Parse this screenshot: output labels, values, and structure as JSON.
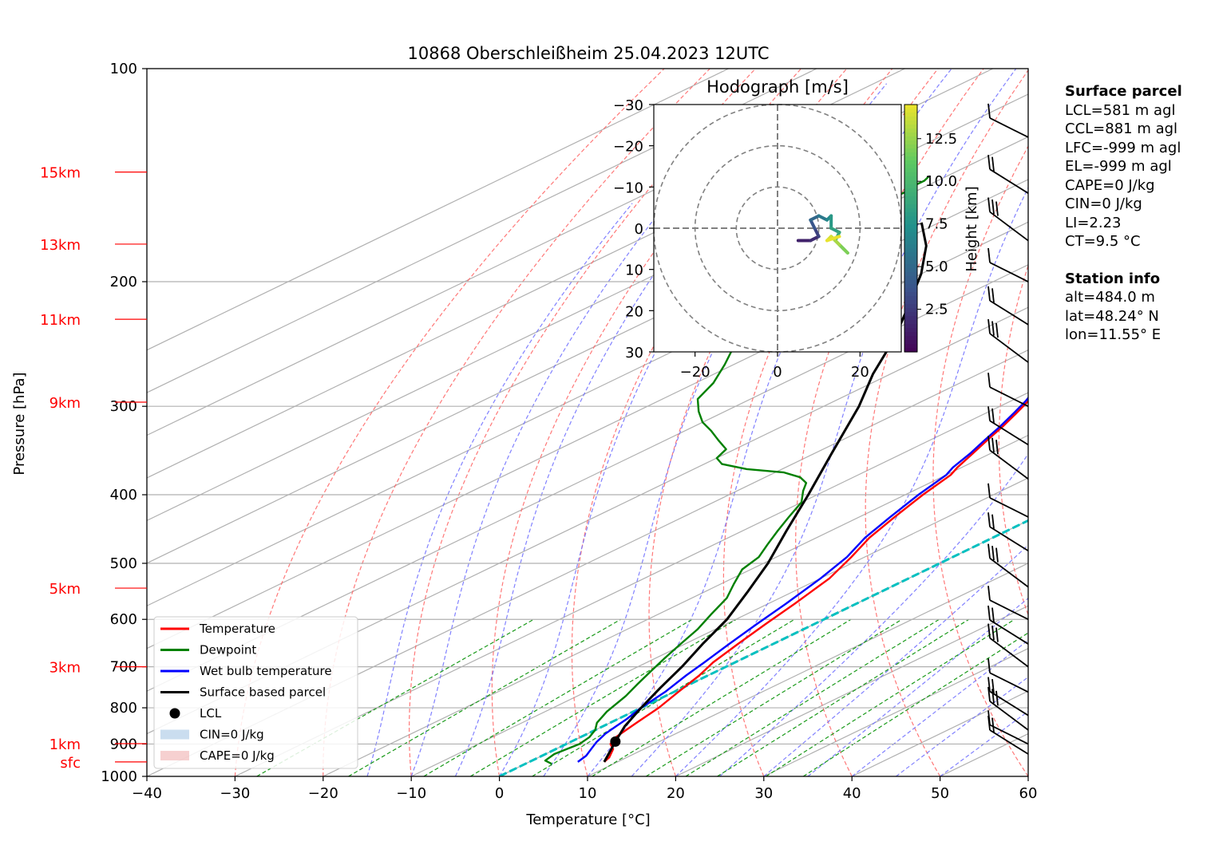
{
  "title": "10868 Oberschleißheim 25.04.2023 12UTC",
  "xlabel": "Temperature [°C]",
  "ylabel": "Pressure [hPa]",
  "hodograph": {
    "title": "Hodograph [m/s]",
    "colorbar_label": "Height [km]",
    "colorbar_ticks": [
      "2.5",
      "5.0",
      "7.5",
      "10.0",
      "12.5"
    ],
    "axis_ticks": [
      "−30",
      "−20",
      "−10",
      "0",
      "10",
      "20",
      "30"
    ],
    "x_ticks": [
      "−20",
      "0",
      "20"
    ]
  },
  "height_labels": [
    {
      "label": "15km",
      "p": 140
    },
    {
      "label": "13km",
      "p": 177
    },
    {
      "label": "11km",
      "p": 226
    },
    {
      "label": "9km",
      "p": 296
    },
    {
      "label": "5km",
      "p": 542
    },
    {
      "label": "3km",
      "p": 700
    },
    {
      "label": "1km",
      "p": 899
    },
    {
      "label": "sfc",
      "p": 954
    }
  ],
  "legend": [
    {
      "label": "Temperature",
      "color": "#ff0000",
      "kind": "line"
    },
    {
      "label": "Dewpoint",
      "color": "#008000",
      "kind": "line"
    },
    {
      "label": "Wet bulb temperature",
      "color": "#0000ff",
      "kind": "line"
    },
    {
      "label": "Surface based parcel",
      "color": "#000000",
      "kind": "line"
    },
    {
      "label": "LCL",
      "color": "#000000",
      "kind": "dot"
    },
    {
      "label": "CIN=0 J/kg",
      "color": "#a6c6e4",
      "kind": "patch"
    },
    {
      "label": "CAPE=0 J/kg",
      "color": "#f0b0b0",
      "kind": "patch"
    }
  ],
  "surface_parcel": {
    "header": "Surface parcel",
    "lines": [
      "LCL=581 m agl",
      "CCL=881 m agl",
      "LFC=-999 m agl",
      "EL=-999 m agl",
      "CAPE=0 J/kg",
      "CIN=0 J/kg",
      "LI=2.23",
      "CT=9.5 °C"
    ]
  },
  "station_info": {
    "header": "Station info",
    "lines": [
      "alt=484.0 m",
      "lat=48.24° N",
      "lon=11.55° E"
    ]
  },
  "chart_data": {
    "type": "line",
    "x_ticks": [
      "−40",
      "−30",
      "−20",
      "−10",
      "0",
      "10",
      "20",
      "30",
      "40",
      "50",
      "60"
    ],
    "y_ticks": [
      "100",
      "200",
      "300",
      "400",
      "500",
      "600",
      "700",
      "800",
      "900",
      "1000"
    ],
    "xlim": [
      -40,
      60
    ],
    "ylim": [
      1000,
      100
    ],
    "yscale": "log",
    "skew_deg_per_log10": 166,
    "series": [
      {
        "name": "Temperature",
        "color": "#ff0000",
        "points": [
          [
            8.5,
            954
          ],
          [
            8,
            940
          ],
          [
            6.5,
            915
          ],
          [
            5,
            900
          ],
          [
            4,
            880
          ],
          [
            3.5,
            860
          ],
          [
            3,
            840
          ],
          [
            2,
            800
          ],
          [
            0.5,
            760
          ],
          [
            -1,
            720
          ],
          [
            -2.5,
            690
          ],
          [
            -4,
            650
          ],
          [
            -5.5,
            610
          ],
          [
            -7,
            570
          ],
          [
            -9,
            525
          ],
          [
            -11.5,
            490
          ],
          [
            -14,
            460
          ],
          [
            -16,
            430
          ],
          [
            -18,
            400
          ],
          [
            -19.5,
            375
          ],
          [
            -20.5,
            366
          ],
          [
            -22,
            350
          ],
          [
            -23.5,
            335
          ],
          [
            -25,
            320
          ],
          [
            -26.5,
            307
          ],
          [
            -28,
            295
          ],
          [
            -30,
            282
          ],
          [
            -32,
            270
          ],
          [
            -34.5,
            258
          ],
          [
            -37,
            246
          ],
          [
            -39.5,
            236
          ],
          [
            -42.5,
            226
          ],
          [
            -44,
            217
          ],
          [
            -46,
            208
          ],
          [
            -47.5,
            200
          ],
          [
            -49,
            192
          ],
          [
            -50.5,
            185
          ],
          [
            -52,
            177
          ],
          [
            -53,
            170
          ],
          [
            -54,
            165
          ],
          [
            -55,
            160
          ],
          [
            -56,
            154
          ],
          [
            -57.5,
            148
          ],
          [
            -58,
            144
          ],
          [
            -58.5,
            142
          ]
        ]
      },
      {
        "name": "Dewpoint",
        "color": "#008000",
        "points": [
          [
            3,
            960
          ],
          [
            1.5,
            950
          ],
          [
            1,
            930
          ],
          [
            1.5,
            900
          ],
          [
            1,
            880
          ],
          [
            0,
            860
          ],
          [
            -1.5,
            840
          ],
          [
            -3,
            810
          ],
          [
            -4.5,
            770
          ],
          [
            -6,
            740
          ],
          [
            -7.5,
            710
          ],
          [
            -9,
            680
          ],
          [
            -10.5,
            650
          ],
          [
            -12,
            620
          ],
          [
            -14,
            590
          ],
          [
            -16,
            560
          ],
          [
            -18.5,
            535
          ],
          [
            -21,
            510
          ],
          [
            -22,
            490
          ],
          [
            -24,
            470
          ],
          [
            -26,
            450
          ],
          [
            -28,
            430
          ],
          [
            -30,
            410
          ],
          [
            -32.5,
            395
          ],
          [
            -34,
            385
          ],
          [
            -36,
            378
          ],
          [
            -39,
            372
          ],
          [
            -44,
            368
          ],
          [
            -48,
            362
          ],
          [
            -50,
            355
          ],
          [
            -51,
            345
          ],
          [
            -54,
            335
          ],
          [
            -57,
            325
          ],
          [
            -60,
            316
          ],
          [
            -63,
            305
          ],
          [
            -66,
            293
          ],
          [
            -68,
            278
          ],
          [
            -71,
            262
          ],
          [
            -74,
            248
          ],
          [
            -77,
            236
          ],
          [
            -80,
            226
          ],
          [
            -82,
            218
          ],
          [
            -84,
            210
          ],
          [
            -85.5,
            200
          ],
          [
            -87,
            190
          ],
          [
            -88.5,
            180
          ],
          [
            -89.5,
            171
          ],
          [
            -90,
            164
          ],
          [
            -90.5,
            158
          ],
          [
            -91,
            153
          ],
          [
            -91,
            149
          ],
          [
            -91.5,
            146
          ],
          [
            -91.5,
            144
          ],
          [
            -92,
            142
          ]
        ]
      },
      {
        "name": "Wet bulb temperature",
        "color": "#0000ff",
        "points": [
          [
            5.5,
            954
          ],
          [
            5,
            935
          ],
          [
            4,
            915
          ],
          [
            3,
            895
          ],
          [
            2,
            870
          ],
          [
            1.5,
            850
          ],
          [
            1,
            830
          ],
          [
            0,
            800
          ],
          [
            -1,
            760
          ],
          [
            -2.5,
            720
          ],
          [
            -3.5,
            690
          ],
          [
            -5,
            650
          ],
          [
            -6.5,
            610
          ],
          [
            -8,
            570
          ],
          [
            -10,
            525
          ],
          [
            -12,
            490
          ],
          [
            -14.5,
            460
          ],
          [
            -16.5,
            430
          ],
          [
            -18.5,
            400
          ],
          [
            -20,
            375
          ],
          [
            -21,
            366
          ],
          [
            -22.3,
            350
          ],
          [
            -23.8,
            335
          ],
          [
            -25.3,
            320
          ],
          [
            -26.8,
            307
          ],
          [
            -28.3,
            295
          ],
          [
            -30.3,
            282
          ],
          [
            -32.3,
            270
          ],
          [
            -34.8,
            258
          ],
          [
            -37.3,
            246
          ],
          [
            -39.8,
            236
          ],
          [
            -42.8,
            226
          ],
          [
            -44.3,
            217
          ],
          [
            -46.3,
            208
          ],
          [
            -47.8,
            200
          ],
          [
            -49.3,
            192
          ],
          [
            -50.8,
            185
          ],
          [
            -52.3,
            177
          ],
          [
            -53.3,
            170
          ],
          [
            -54.3,
            165
          ],
          [
            -55.3,
            160
          ],
          [
            -56.3,
            154
          ],
          [
            -57.8,
            148
          ],
          [
            -58.3,
            144
          ],
          [
            -58.8,
            142
          ]
        ]
      },
      {
        "name": "Surface based parcel",
        "color": "#000000",
        "points": [
          [
            8.5,
            954
          ],
          [
            5,
            893
          ],
          [
            2.5,
            850
          ],
          [
            0,
            800
          ],
          [
            -2.5,
            750
          ],
          [
            -5,
            700
          ],
          [
            -8,
            650
          ],
          [
            -11,
            600
          ],
          [
            -15,
            550
          ],
          [
            -19.5,
            500
          ],
          [
            -25,
            450
          ],
          [
            -31,
            400
          ],
          [
            -38,
            350
          ],
          [
            -46,
            300
          ],
          [
            -52,
            270
          ],
          [
            -58,
            240
          ],
          [
            -63,
            220
          ],
          [
            -70,
            195
          ],
          [
            -76,
            178
          ],
          [
            -82,
            165
          ]
        ]
      }
    ],
    "lcl": {
      "label": "LCL",
      "t": 5,
      "p": 893
    }
  }
}
